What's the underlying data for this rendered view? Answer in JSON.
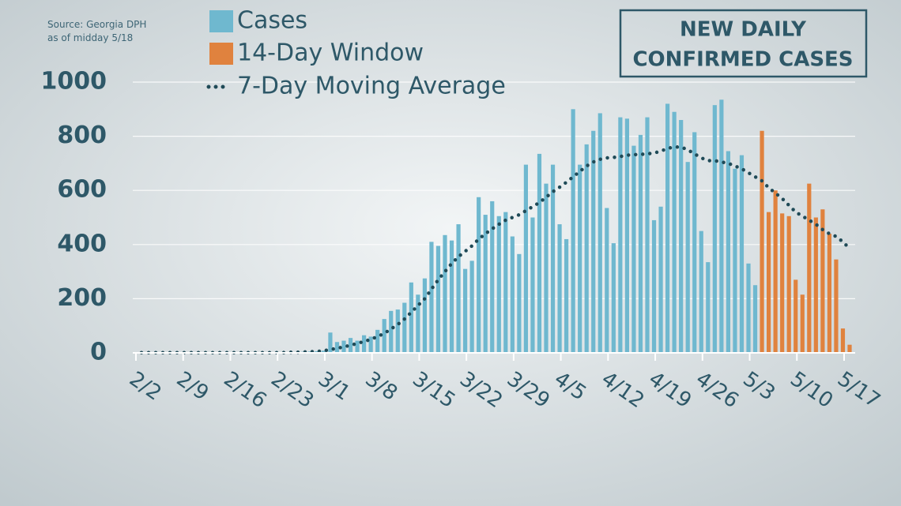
{
  "chart_data": {
    "type": "bar",
    "title": [
      "NEW DAILY",
      "CONFIRMED CASES"
    ],
    "source": [
      "Source: Georgia DPH",
      "as of midday 5/18"
    ],
    "categories": [
      "2/2",
      null,
      null,
      null,
      null,
      null,
      null,
      "2/9",
      null,
      null,
      null,
      null,
      null,
      null,
      "2/16",
      null,
      null,
      null,
      null,
      null,
      null,
      "2/23",
      null,
      null,
      null,
      null,
      null,
      null,
      "3/1",
      null,
      null,
      null,
      null,
      null,
      null,
      "3/8",
      null,
      null,
      null,
      null,
      null,
      null,
      "3/15",
      null,
      null,
      null,
      null,
      null,
      null,
      "3/22",
      null,
      null,
      null,
      null,
      null,
      null,
      "3/29",
      null,
      null,
      null,
      null,
      null,
      null,
      "4/5",
      null,
      null,
      null,
      null,
      null,
      null,
      "4/12",
      null,
      null,
      null,
      null,
      null,
      null,
      "4/19",
      null,
      null,
      null,
      null,
      null,
      null,
      "4/26",
      null,
      null,
      null,
      null,
      null,
      null,
      "5/3",
      null,
      null,
      null,
      null,
      null,
      null,
      "5/10",
      null,
      null,
      null,
      null,
      null,
      null,
      "5/17"
    ],
    "series": [
      {
        "name": "Cases",
        "color": "#6fb8cf",
        "values": [
          2,
          1,
          1,
          0,
          0,
          0,
          3,
          2,
          1,
          0,
          1,
          0,
          0,
          1,
          0,
          1,
          0,
          0,
          1,
          0,
          0,
          1,
          2,
          3,
          4,
          5,
          6,
          8,
          75,
          40,
          45,
          55,
          45,
          65,
          60,
          85,
          125,
          155,
          160,
          185,
          260,
          215,
          275,
          410,
          395,
          435,
          415,
          475,
          310,
          340,
          575,
          510,
          560,
          505,
          520,
          430,
          365,
          695,
          500,
          735,
          625,
          695,
          475,
          420,
          900,
          695,
          770,
          820,
          885,
          535,
          405,
          870,
          865,
          765,
          805,
          870,
          490,
          540,
          920,
          890,
          860,
          705,
          815,
          450,
          335,
          915,
          935,
          745,
          680,
          730,
          330,
          250,
          null,
          null,
          null,
          null,
          null,
          null,
          null,
          null,
          null,
          null,
          null,
          null,
          null,
          null
        ]
      },
      {
        "name": "14-Day Window",
        "color": "#e0823e",
        "values": [
          null,
          null,
          null,
          null,
          null,
          null,
          null,
          null,
          null,
          null,
          null,
          null,
          null,
          null,
          null,
          null,
          null,
          null,
          null,
          null,
          null,
          null,
          null,
          null,
          null,
          null,
          null,
          null,
          null,
          null,
          null,
          null,
          null,
          null,
          null,
          null,
          null,
          null,
          null,
          null,
          null,
          null,
          null,
          null,
          null,
          null,
          null,
          null,
          null,
          null,
          null,
          null,
          null,
          null,
          null,
          null,
          null,
          null,
          null,
          null,
          null,
          null,
          null,
          null,
          null,
          null,
          null,
          null,
          null,
          null,
          null,
          null,
          null,
          null,
          null,
          null,
          null,
          null,
          null,
          null,
          null,
          null,
          null,
          null,
          null,
          null,
          null,
          null,
          null,
          null,
          null,
          null,
          820,
          520,
          600,
          515,
          505,
          270,
          215,
          625,
          500,
          530,
          440,
          345,
          90,
          30
        ]
      },
      {
        "name": "7-Day Moving Average",
        "color": "#1f4a57",
        "type": "line",
        "line_style": "dotted",
        "values": [
          1,
          1,
          1,
          1,
          1,
          1,
          1,
          1,
          1,
          1,
          1,
          1,
          1,
          1,
          1,
          1,
          1,
          1,
          1,
          1,
          1,
          1,
          2,
          2,
          3,
          4,
          5,
          8,
          12,
          17,
          22,
          28,
          35,
          42,
          50,
          60,
          72,
          88,
          105,
          125,
          150,
          175,
          200,
          235,
          270,
          300,
          330,
          355,
          375,
          395,
          420,
          440,
          458,
          475,
          490,
          500,
          510,
          525,
          540,
          555,
          575,
          595,
          612,
          630,
          650,
          670,
          690,
          705,
          715,
          720,
          722,
          725,
          730,
          732,
          733,
          735,
          738,
          745,
          755,
          760,
          760,
          750,
          735,
          720,
          710,
          710,
          705,
          700,
          690,
          680,
          665,
          650,
          635,
          610,
          590,
          570,
          545,
          520,
          505,
          490,
          475,
          455,
          440,
          430,
          410,
          385
        ]
      }
    ],
    "ylim": [
      0,
      1000
    ],
    "yticks": [
      0,
      200,
      400,
      600,
      800,
      1000
    ],
    "grid": true
  }
}
